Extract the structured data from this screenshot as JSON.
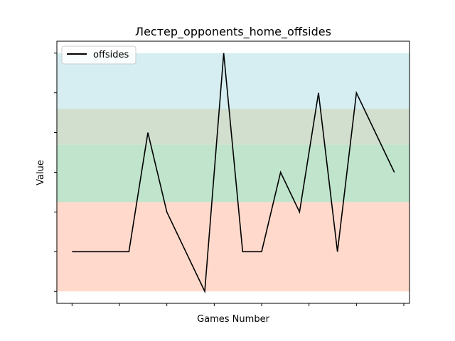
{
  "chart_data": {
    "type": "line",
    "title": "Лестер_opponents_home_offsides",
    "xlabel": "Games Number",
    "ylabel": "Value",
    "x": [
      0,
      1,
      2,
      3,
      4,
      5,
      6,
      7,
      8,
      9,
      10,
      11,
      12,
      13,
      14,
      15,
      16,
      17
    ],
    "xlim": [
      -0.8,
      17.8
    ],
    "ylim": [
      -0.3,
      6.3
    ],
    "x_tick_values": [
      0,
      2.5,
      5,
      7.5,
      10,
      12.5,
      15,
      17.5
    ],
    "y_tick_values": [
      0,
      1,
      2,
      3,
      4,
      5,
      6
    ],
    "series": [
      {
        "name": "offsides",
        "color": "#000000",
        "values": [
          1,
          1,
          1,
          1,
          4,
          2,
          null,
          0,
          6,
          1,
          1,
          3,
          2,
          5,
          1,
          5,
          null,
          3
        ]
      }
    ],
    "bands": [
      {
        "from": 0,
        "to": 2.25,
        "color": "#FFDACC"
      },
      {
        "from": 2.25,
        "to": 3.7,
        "color": "#C0E4CC"
      },
      {
        "from": 3.7,
        "to": 4.6,
        "color": "#D2DFCF"
      },
      {
        "from": 4.6,
        "to": 6,
        "color": "#D6EEF2"
      }
    ],
    "legend": {
      "position": "top-left",
      "entries": [
        "offsides"
      ]
    },
    "grid": false
  }
}
